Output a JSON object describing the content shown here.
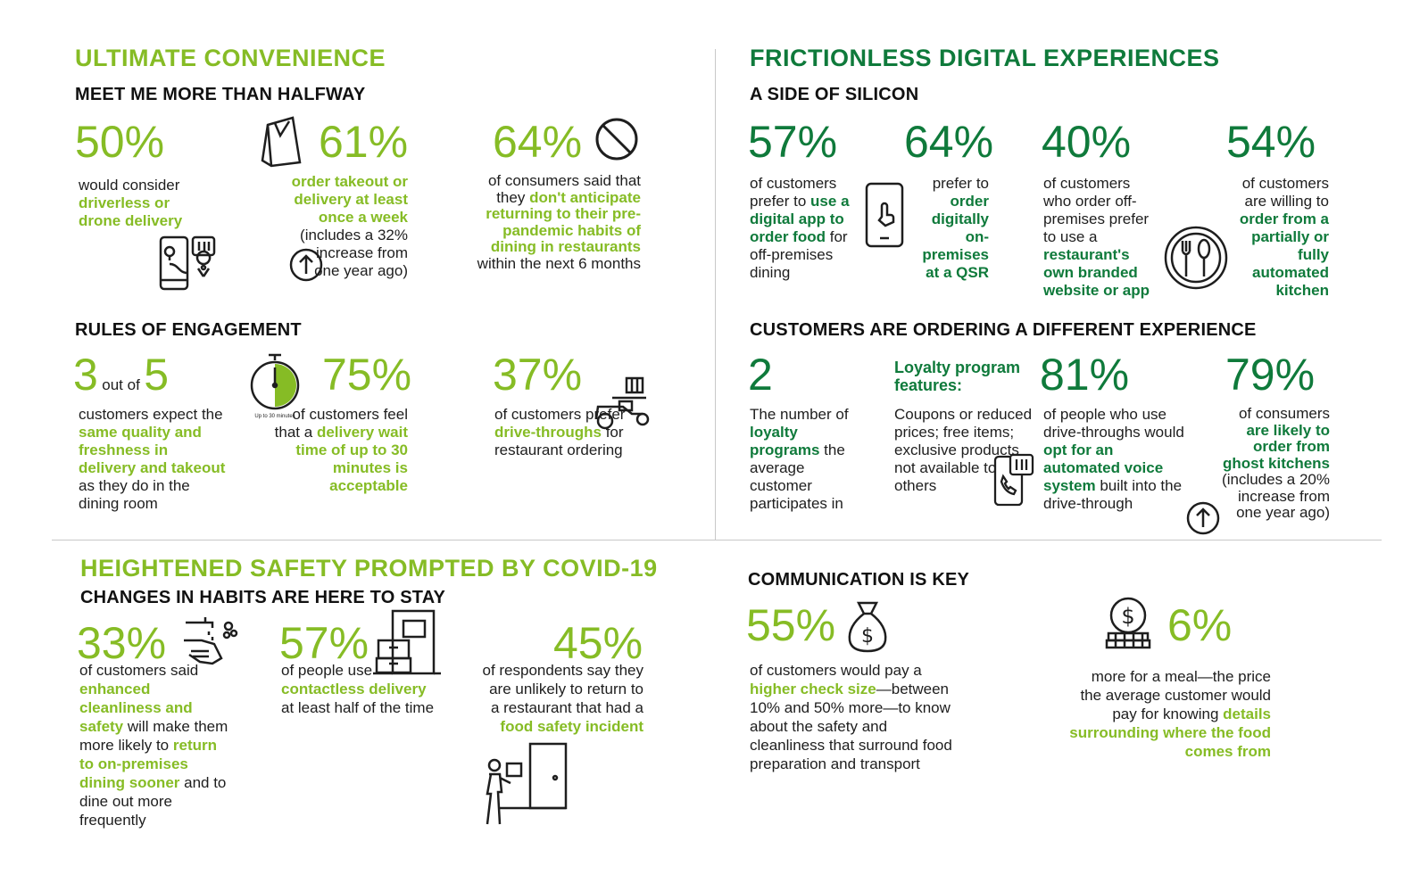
{
  "colors": {
    "light_green": "#86bc25",
    "dark_green": "#0f7a3b",
    "text": "#1e1e1e",
    "divider": "#c8c8c8"
  },
  "convenience": {
    "title": "ULTIMATE CONVENIENCE",
    "halfway": {
      "heading": "MEET ME MORE THAN HALFWAY",
      "s1": {
        "value": "50%",
        "t1": "would consider",
        "b1": "driverless or drone delivery",
        "icon": "phone-location-icon"
      },
      "s2": {
        "value": "61%",
        "b1": "order takeout or delivery at least once a week",
        "t1": "(includes a 32% increase from one year ago)",
        "icon": "takeout-bag-icon",
        "icon2": "up-arrow-icon"
      },
      "s3": {
        "value": "64%",
        "t1": "of consumers said that they",
        "b1": "don't anticipate returning to their pre-pandemic habits of dining in restaurants",
        "t2": "within the next 6 months",
        "icon": "prohibited-icon"
      }
    },
    "engagement": {
      "heading": "RULES OF ENGAGEMENT",
      "s1": {
        "num1": "3",
        "out_of": "out of",
        "num2": "5",
        "t1": "customers expect the",
        "b1": "same quality and freshness in delivery and takeout",
        "t2": "as they do in the dining room"
      },
      "s2": {
        "value": "75%",
        "t1": "of customers feel that a",
        "b1": "delivery wait time of up to 30 minutes is acceptable",
        "timer_label": "Up to 30 minutes",
        "icon": "stopwatch-icon"
      },
      "s3": {
        "value": "37%",
        "t1": "of customers prefer",
        "b1": "drive-throughs",
        "t2": "for restaurant ordering",
        "icon": "delivery-scooter-icon"
      }
    }
  },
  "digital": {
    "title": "FRICTIONLESS DIGITAL EXPERIENCES",
    "silicon": {
      "heading": "A SIDE OF SILICON",
      "s1": {
        "value": "57%",
        "t1": "of customers prefer to",
        "b1": "use a digital app to order food",
        "t2": "for off-premises dining"
      },
      "s2": {
        "value": "64%",
        "t1": "prefer to",
        "b1": "order digitally on-premises at a QSR",
        "icon": "smartphone-touch-icon"
      },
      "s3": {
        "value": "40%",
        "t1": "of customers who order off-premises prefer to use a",
        "b1": "restaurant's own branded website or app"
      },
      "s4": {
        "value": "54%",
        "t1": "of customers are willing to",
        "b1": "order from a partially or fully automated kitchen",
        "icon": "plate-cutlery-icon"
      }
    },
    "ordering": {
      "heading": "CUSTOMERS ARE ORDERING A DIFFERENT EXPERIENCE",
      "s1": {
        "value": "2",
        "t1": "The number of",
        "b1": "loyalty programs",
        "t2": "the average customer participates in"
      },
      "s2": {
        "title": "Loyalty program features:",
        "t1": "Coupons or reduced prices; free items; exclusive products not available to others",
        "icon": "mobile-order-icon"
      },
      "s3": {
        "value": "81%",
        "t1": "of people who use drive-throughs would",
        "b1": "opt for an automated voice system",
        "t2": "built into the drive-through"
      },
      "s4": {
        "value": "79%",
        "t1": "of consumers",
        "b1": "are likely to order from ghost kitchens",
        "t2": "(includes a 20% increase from one year ago)",
        "icon": "up-arrow-icon"
      }
    }
  },
  "safety": {
    "title": "HEIGHTENED SAFETY PROMPTED BY COVID-19",
    "habits": {
      "heading": "CHANGES IN HABITS ARE HERE TO STAY",
      "s1": {
        "value": "33%",
        "t1": "of customers said",
        "b1": "enhanced cleanliness and safety",
        "t2": "will make them more likely to",
        "b2": "return to on-premises dining sooner",
        "t3": "and to dine out more frequently",
        "icon": "handwashing-icon"
      },
      "s2": {
        "value": "57%",
        "t1": "of people use",
        "b1": "contactless delivery",
        "t2": "at least half of the time",
        "icon": "package-doorstep-icon"
      },
      "s3": {
        "value": "45%",
        "t1": "of respondents say they are unlikely to return to a restaurant that had a",
        "b1": "food safety incident",
        "icon": "delivery-person-door-icon"
      }
    },
    "communication": {
      "heading": "COMMUNICATION IS KEY",
      "s1": {
        "value": "55%",
        "t1": "of customers would pay a",
        "b1": "higher check size",
        "t2": "—between 10% and 50% more—to know about the safety and cleanliness that surround food preparation and transport",
        "icon": "money-bag-icon"
      },
      "s2": {
        "value": "6%",
        "t1": "more for a meal—the price the average customer would pay for knowing",
        "b1": "details surrounding where the food comes from",
        "icon": "coin-stack-icon"
      }
    }
  }
}
